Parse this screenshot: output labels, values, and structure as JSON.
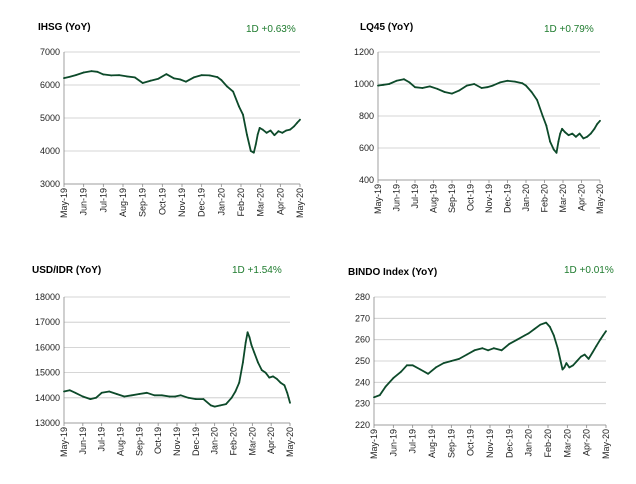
{
  "chart_data": [
    {
      "type": "line",
      "title": "IHSG (YoY)",
      "change_label": "1D +0.63%",
      "ylim": [
        3000,
        7000
      ],
      "yticks": [
        3000,
        4000,
        5000,
        6000,
        7000
      ],
      "x_ticks": [
        "May-19",
        "Jun-19",
        "Jul-19",
        "Aug-19",
        "Sep-19",
        "Oct-19",
        "Nov-19",
        "Dec-19",
        "Jan-20",
        "Feb-20",
        "Mar-20",
        "Apr-20",
        "May-20"
      ],
      "grid": true,
      "line_color": "#0d4a2a",
      "series": [
        {
          "x": [
            0,
            0.3,
            0.6,
            1.0,
            1.4,
            1.7,
            2.0,
            2.4,
            2.8,
            3.2,
            3.6,
            4.0,
            4.4,
            4.8,
            5.2,
            5.6,
            5.9,
            6.2,
            6.6,
            7.0,
            7.4,
            7.8,
            8.0,
            8.3,
            8.6,
            8.9,
            9.1,
            9.3,
            9.5,
            9.65,
            9.75,
            9.85,
            9.95,
            10.1,
            10.3,
            10.5,
            10.7,
            10.9,
            11.1,
            11.3,
            11.5,
            11.7,
            11.85,
            12.0
          ],
          "y": [
            6210,
            6250,
            6300,
            6380,
            6420,
            6400,
            6320,
            6290,
            6300,
            6260,
            6230,
            6060,
            6130,
            6190,
            6330,
            6200,
            6170,
            6100,
            6230,
            6300,
            6290,
            6240,
            6150,
            5950,
            5800,
            5350,
            5100,
            4500,
            4000,
            3950,
            4200,
            4500,
            4700,
            4650,
            4550,
            4620,
            4480,
            4600,
            4550,
            4620,
            4650,
            4750,
            4850,
            4950
          ]
        }
      ]
    },
    {
      "type": "line",
      "title": "LQ45 (YoY)",
      "change_label": "1D +0.79%",
      "ylim": [
        400,
        1200
      ],
      "yticks": [
        400,
        600,
        800,
        1000,
        1200
      ],
      "x_ticks": [
        "May-19",
        "Jun-19",
        "Jul-19",
        "Aug-19",
        "Sep-19",
        "Oct-19",
        "Nov-19",
        "Dec-19",
        "Jan-20",
        "Feb-20",
        "Mar-20",
        "Apr-20",
        "May-20"
      ],
      "grid": true,
      "line_color": "#0d4a2a",
      "series": [
        {
          "x": [
            0,
            0.3,
            0.6,
            1.0,
            1.4,
            1.7,
            2.0,
            2.4,
            2.8,
            3.2,
            3.6,
            4.0,
            4.4,
            4.8,
            5.2,
            5.6,
            5.9,
            6.2,
            6.6,
            7.0,
            7.4,
            7.8,
            8.0,
            8.3,
            8.6,
            8.9,
            9.1,
            9.3,
            9.5,
            9.65,
            9.75,
            9.85,
            9.95,
            10.1,
            10.3,
            10.5,
            10.7,
            10.9,
            11.1,
            11.3,
            11.5,
            11.7,
            11.85,
            12.0
          ],
          "y": [
            990,
            995,
            1000,
            1020,
            1030,
            1010,
            980,
            975,
            985,
            970,
            950,
            940,
            960,
            990,
            1000,
            975,
            980,
            990,
            1010,
            1020,
            1015,
            1005,
            990,
            950,
            900,
            800,
            740,
            640,
            590,
            570,
            640,
            690,
            720,
            700,
            680,
            690,
            670,
            690,
            660,
            670,
            690,
            720,
            750,
            770
          ]
        }
      ]
    },
    {
      "type": "line",
      "title": "USD/IDR  (YoY)",
      "change_label": "1D +1.54%",
      "ylim": [
        13000,
        18000
      ],
      "yticks": [
        13000,
        14000,
        15000,
        16000,
        17000,
        18000
      ],
      "x_ticks": [
        "May-19",
        "Jun-19",
        "Jul-19",
        "Aug-19",
        "Sep-19",
        "Oct-19",
        "Nov-19",
        "Dec-19",
        "Jan-20",
        "Feb-20",
        "Mar-20",
        "Apr-20",
        "May-20"
      ],
      "grid": true,
      "line_color": "#0d4a2a",
      "series": [
        {
          "x": [
            0,
            0.3,
            0.6,
            1.0,
            1.4,
            1.7,
            2.0,
            2.4,
            2.8,
            3.2,
            3.6,
            4.0,
            4.4,
            4.8,
            5.2,
            5.6,
            5.9,
            6.2,
            6.6,
            7.0,
            7.4,
            7.8,
            8.0,
            8.3,
            8.6,
            8.9,
            9.1,
            9.3,
            9.5,
            9.65,
            9.75,
            9.85,
            9.95,
            10.1,
            10.3,
            10.5,
            10.7,
            10.9,
            11.1,
            11.3,
            11.5,
            11.7,
            11.85,
            12.0
          ],
          "y": [
            14250,
            14300,
            14200,
            14050,
            13950,
            14000,
            14200,
            14250,
            14150,
            14050,
            14100,
            14150,
            14200,
            14100,
            14100,
            14050,
            14050,
            14100,
            14000,
            13950,
            13950,
            13700,
            13650,
            13700,
            13750,
            14000,
            14250,
            14600,
            15400,
            16200,
            16600,
            16400,
            16100,
            15800,
            15400,
            15100,
            15000,
            14800,
            14850,
            14750,
            14600,
            14500,
            14200,
            13800
          ]
        }
      ]
    },
    {
      "type": "line",
      "title": "BINDO Index (YoY)",
      "change_label": "1D +0.01%",
      "ylim": [
        220,
        280
      ],
      "yticks": [
        220,
        230,
        240,
        250,
        260,
        270,
        280
      ],
      "x_ticks": [
        "May-19",
        "Jun-19",
        "Jul-19",
        "Aug-19",
        "Sep-19",
        "Oct-19",
        "Nov-19",
        "Dec-19",
        "Jan-20",
        "Feb-20",
        "Mar-20",
        "Apr-20",
        "May-20"
      ],
      "grid": true,
      "line_color": "#0d4a2a",
      "series": [
        {
          "x": [
            0,
            0.3,
            0.6,
            1.0,
            1.4,
            1.7,
            2.0,
            2.4,
            2.8,
            3.2,
            3.6,
            4.0,
            4.4,
            4.8,
            5.2,
            5.6,
            5.9,
            6.2,
            6.6,
            7.0,
            7.4,
            7.8,
            8.0,
            8.3,
            8.6,
            8.9,
            9.1,
            9.3,
            9.5,
            9.65,
            9.75,
            9.85,
            9.95,
            10.1,
            10.3,
            10.5,
            10.7,
            10.9,
            11.1,
            11.3,
            11.5,
            11.7,
            11.85,
            12.0
          ],
          "y": [
            233,
            234,
            238,
            242,
            245,
            248,
            248,
            246,
            244,
            247,
            249,
            250,
            251,
            253,
            255,
            256,
            255,
            256,
            255,
            258,
            260,
            262,
            263,
            265,
            267,
            268,
            266,
            262,
            256,
            250,
            246,
            247,
            249,
            247,
            248,
            250,
            252,
            253,
            251,
            254,
            257,
            260,
            262,
            264
          ]
        }
      ]
    }
  ]
}
